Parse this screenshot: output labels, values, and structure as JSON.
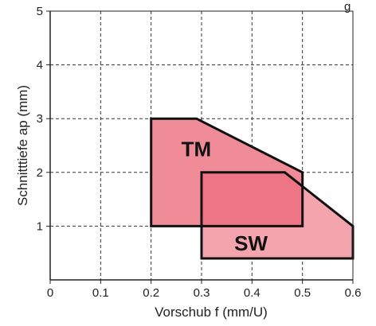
{
  "chart_data": {
    "type": "area",
    "xlabel": "Vorschub f (mm/U)",
    "ylabel": "Schnitttiefe ap (mm)",
    "xlim": [
      0,
      0.6
    ],
    "ylim": [
      0,
      5
    ],
    "x_ticks": [
      "0",
      "0.1",
      "0.2",
      "0.3",
      "0.4",
      "0.5",
      "0.6"
    ],
    "y_ticks": [
      "1",
      "2",
      "3",
      "4",
      "5"
    ],
    "grid": true,
    "corner_text": "g",
    "series": [
      {
        "name": "TM",
        "color": "#f08c97",
        "points": [
          [
            0.2,
            3.0
          ],
          [
            0.29,
            3.0
          ],
          [
            0.5,
            2.0
          ],
          [
            0.5,
            1.0
          ],
          [
            0.2,
            1.0
          ]
        ]
      },
      {
        "name": "SW",
        "color": "#f4a4ad",
        "points": [
          [
            0.3,
            2.0
          ],
          [
            0.465,
            2.0
          ],
          [
            0.6,
            1.0
          ],
          [
            0.6,
            0.4
          ],
          [
            0.3,
            0.4
          ]
        ]
      }
    ],
    "overlap_color": "#ee7585"
  }
}
